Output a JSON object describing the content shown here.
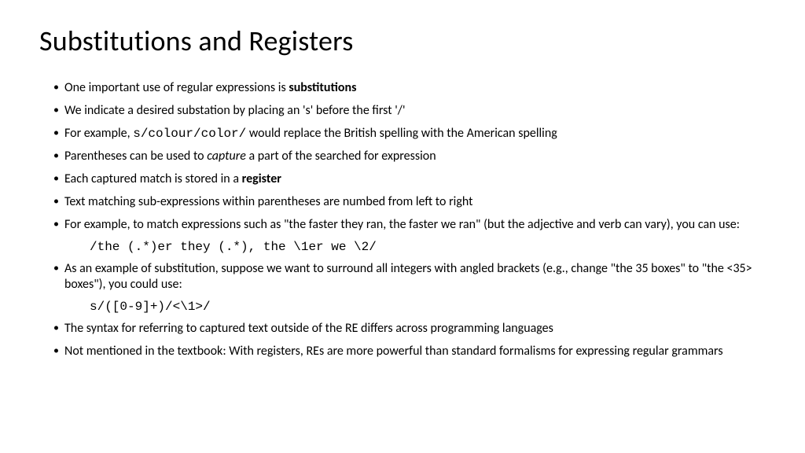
{
  "title": "Substitutions and Registers",
  "bullets": {
    "b1_pre": "One important use of regular expressions is ",
    "b1_bold": "substitutions",
    "b2": "We indicate a desired substation by placing an 's' before the first '/'",
    "b3_pre": "For example, ",
    "b3_code": "s/colour/color/",
    "b3_post": " would replace the British spelling with the American spelling",
    "b4_pre": "Parentheses can be used to ",
    "b4_italic": "capture",
    "b4_post": " a part of the searched for expression",
    "b5_pre": "Each captured match is stored in a ",
    "b5_bold": "register",
    "b6": "Text matching sub-expressions within parentheses are numbed from left to right",
    "b7": "For example, to match expressions such as \"the faster they ran, the faster we ran\" (but the adjective and verb can vary), you can use:",
    "b7_code": "/the (.*)er they (.*), the \\1er we \\2/",
    "b8": "As an example of substitution, suppose we want to surround all integers with angled brackets (e.g., change \"the 35 boxes\" to \"the <35> boxes\"), you could use:",
    "b8_code": "s/([0-9]+)/<\\1>/",
    "b9": "The syntax for referring to captured text outside of the RE differs across programming languages",
    "b10": "Not mentioned in the textbook: With registers, REs are more powerful than standard formalisms for expressing regular grammars"
  },
  "style": {
    "background": "#ffffff",
    "text_color": "#000000",
    "title_fontsize": 36,
    "body_fontsize": 16,
    "font_family": "Calibri",
    "code_font_family": "Courier New"
  }
}
